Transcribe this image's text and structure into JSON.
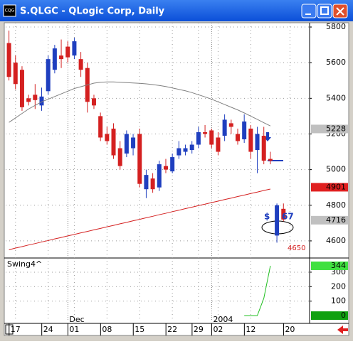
{
  "window": {
    "icon": "CQG",
    "title": "S.QLGC - QLogic Corp, Daily"
  },
  "chart_data": [
    {
      "type": "candlestick",
      "xlim": [
        -0.5,
        46
      ],
      "xticks": [
        {
          "value": 1,
          "label": "17"
        },
        {
          "value": 6,
          "label": "24"
        },
        {
          "value": 10,
          "label": "01"
        },
        {
          "value": 15,
          "label": "08"
        },
        {
          "value": 20,
          "label": "15"
        },
        {
          "value": 25,
          "label": "22"
        },
        {
          "value": 29,
          "label": "29"
        },
        {
          "value": 32,
          "label": "02"
        },
        {
          "value": 37,
          "label": "12"
        },
        {
          "value": 43,
          "label": "20"
        }
      ],
      "period_labels": [
        {
          "value": 10,
          "label": "Dec"
        },
        {
          "value": 32,
          "label": "2004"
        }
      ],
      "ylim": [
        4508,
        5824
      ],
      "yticks": [
        4600,
        4800,
        5000,
        5200,
        5400,
        5600,
        5800
      ],
      "grid": true,
      "up_color": "#1f3fbf",
      "down_color": "#d42020",
      "open": [
        5710,
        5600,
        5560,
        5400,
        5420,
        5360,
        5440,
        5560,
        5640,
        5690,
        5640,
        5620,
        5570,
        5400,
        5300,
        5200,
        5230,
        5120,
        5090,
        5120,
        5200,
        4890,
        4950,
        4900,
        5020,
        4990,
        5080,
        5100,
        5110,
        5140,
        5210,
        5220,
        5180,
        5190,
        5260,
        5200,
        5170,
        5230,
        5110,
        5190,
        5060
      ],
      "high": [
        5780,
        5640,
        5580,
        5420,
        5480,
        5460,
        5640,
        5700,
        5730,
        5720,
        5740,
        5660,
        5600,
        5420,
        5320,
        5240,
        5260,
        5160,
        5220,
        5200,
        5230,
        5000,
        4980,
        5050,
        5060,
        5090,
        5160,
        5140,
        5160,
        5240,
        5250,
        5230,
        5210,
        5310,
        5280,
        5230,
        5310,
        5250,
        5240,
        5240,
        5100
      ],
      "low": [
        5500,
        5450,
        5330,
        5360,
        5340,
        5330,
        5420,
        5540,
        5570,
        5600,
        5620,
        5520,
        5320,
        5340,
        5160,
        5140,
        5060,
        5000,
        5070,
        5080,
        4900,
        4840,
        4870,
        4880,
        4980,
        4980,
        5060,
        5080,
        5090,
        5120,
        5180,
        5120,
        5080,
        5160,
        5200,
        5140,
        5150,
        5060,
        4980,
        5030,
        5030
      ],
      "close": [
        5520,
        5480,
        5350,
        5380,
        5390,
        5410,
        5620,
        5680,
        5620,
        5630,
        5720,
        5560,
        5380,
        5360,
        5180,
        5160,
        5080,
        5020,
        5200,
        5180,
        4920,
        4970,
        4890,
        5030,
        5000,
        5070,
        5120,
        5120,
        5140,
        5210,
        5200,
        5140,
        5100,
        5280,
        5240,
        5160,
        5270,
        5100,
        5200,
        5050,
        5050
      ],
      "series": [
        {
          "color": "#808080",
          "values": [
            5265,
            5290,
            5315,
            5340,
            5360,
            5380,
            5395,
            5410,
            5425,
            5440,
            5455,
            5465,
            5475,
            5485,
            5490,
            5492,
            5492,
            5490,
            5488,
            5486,
            5484,
            5481,
            5477,
            5472,
            5466,
            5458,
            5450,
            5442,
            5432,
            5420,
            5408,
            5395,
            5380,
            5365,
            5350,
            5335,
            5318,
            5300,
            5282,
            5263,
            5245
          ]
        },
        {
          "color": "#d42020",
          "values": [
            4550,
            4560,
            4568,
            4577,
            4585,
            4594,
            4602,
            4611,
            4619,
            4628,
            4636,
            4645,
            4653,
            4662,
            4670,
            4679,
            4687,
            4696,
            4704,
            4713,
            4721,
            4730,
            4738,
            4747,
            4755,
            4764,
            4772,
            4781,
            4789,
            4798,
            4806,
            4815,
            4823,
            4832,
            4840,
            4849,
            4857,
            4866,
            4874,
            4883,
            4891
          ]
        }
      ],
      "inset": {
        "x": [
          41,
          42
        ],
        "open": [
          4630,
          4780
        ],
        "high": [
          4810,
          4810
        ],
        "low": [
          4590,
          4710
        ],
        "close": [
          4800,
          4720
        ]
      },
      "price_tags": [
        {
          "value": 5228,
          "color": "#c0c0c0"
        },
        {
          "value": 4901,
          "color": "#e02020"
        },
        {
          "value": 4716,
          "color": "#c0c0c0"
        }
      ],
      "annotations": [
        {
          "text": "$",
          "color": "#1f3fbf"
        },
        {
          "text": "67",
          "color": "#1f3fbf"
        },
        {
          "text": "4650",
          "color": "#d42020"
        }
      ]
    },
    {
      "type": "line",
      "title": "Swing4^",
      "ylim": [
        -39,
        393
      ],
      "yticks": [
        100,
        200,
        300
      ],
      "grid": true,
      "series": [
        {
          "color": "#20c020",
          "values": [
            null,
            null,
            null,
            null,
            null,
            null,
            null,
            null,
            null,
            null,
            null,
            null,
            null,
            null,
            null,
            null,
            null,
            null,
            null,
            null,
            null,
            null,
            null,
            null,
            null,
            null,
            null,
            null,
            null,
            null,
            null,
            null,
            null,
            null,
            null,
            null,
            0,
            0,
            0,
            120,
            344
          ]
        }
      ],
      "price_tags": [
        {
          "value": 344,
          "color": "#40e040"
        },
        {
          "value": 0,
          "color": "#10a010"
        }
      ]
    }
  ]
}
